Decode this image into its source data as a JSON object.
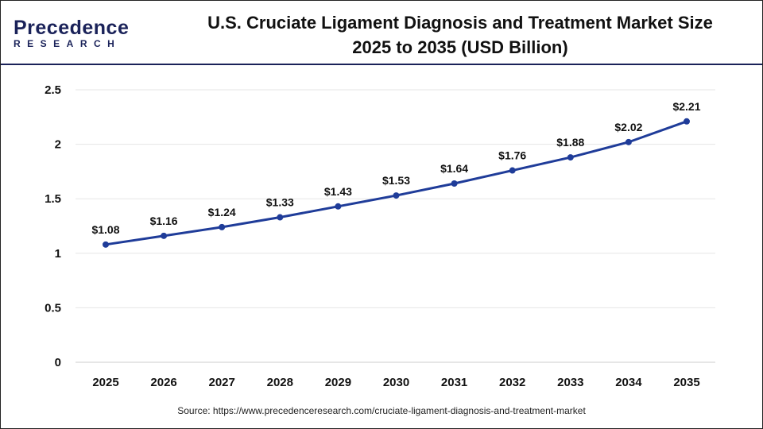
{
  "header": {
    "logo_text": "Precedence",
    "logo_subtext": "RESEARCH",
    "title_line1": "U.S. Cruciate Ligament Diagnosis and Treatment Market Size",
    "title_line2": "2025 to 2035 (USD Billion)"
  },
  "source": "Source: https://www.precedenceresearch.com/cruciate-ligament-diagnosis-and-treatment-market",
  "chart_data": {
    "type": "line",
    "title": "U.S. Cruciate Ligament Diagnosis and Treatment Market Size 2025 to 2035 (USD Billion)",
    "categories": [
      "2025",
      "2026",
      "2027",
      "2028",
      "2029",
      "2030",
      "2031",
      "2032",
      "2033",
      "2034",
      "2035"
    ],
    "values": [
      1.08,
      1.16,
      1.24,
      1.33,
      1.43,
      1.53,
      1.64,
      1.76,
      1.88,
      2.02,
      2.21
    ],
    "data_labels": [
      "$1.08",
      "$1.16",
      "$1.24",
      "$1.33",
      "$1.43",
      "$1.53",
      "$1.64",
      "$1.76",
      "$1.88",
      "$2.02",
      "$2.21"
    ],
    "yticks": [
      "0",
      "0.5",
      "1",
      "1.5",
      "2",
      "2.5"
    ],
    "ylim": [
      0,
      2.5
    ],
    "grid": true,
    "line_color": "#1f3c99"
  }
}
